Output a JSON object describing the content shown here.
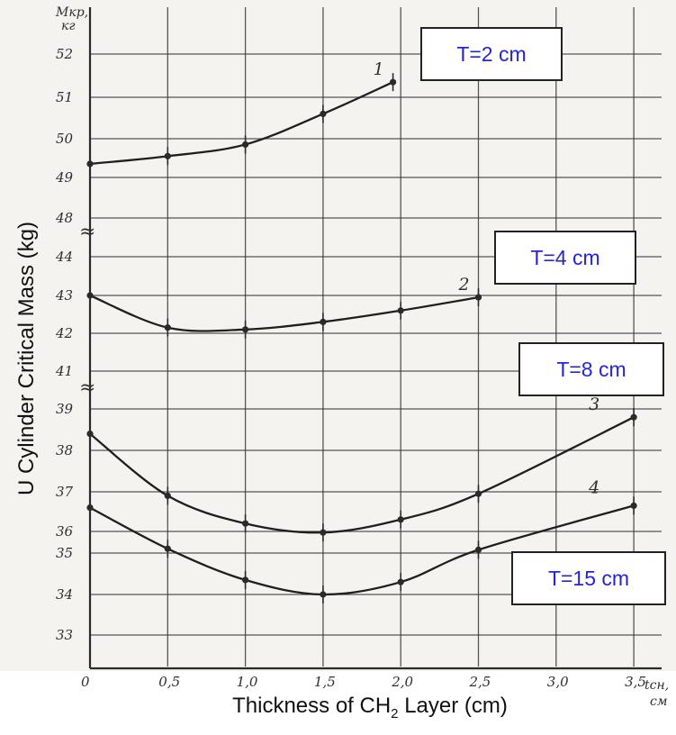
{
  "chart_data": {
    "type": "line",
    "xlabel_pre": "Thickness of CH",
    "xlabel_sub": "2",
    "xlabel_post": " Layer (cm)",
    "ylabel": "U Cylinder Critical Mass (kg)",
    "yaxis_top_label": "Mкр,",
    "yaxis_top_unit": "кг",
    "xaxis_end_label": "tсн,",
    "xaxis_end_unit": "см",
    "x_ticks": [
      "0",
      "0,5",
      "1,0",
      "1,5",
      "2,0",
      "2,5",
      "3,0",
      "3,5"
    ],
    "y_ticks": [
      "52",
      "51",
      "50",
      "49",
      "48",
      "44",
      "43",
      "42",
      "41",
      "39",
      "38",
      "37",
      "36",
      "35",
      "34",
      "33"
    ],
    "axis_break_symbols": [
      "≈",
      "≈"
    ],
    "xlim": [
      0,
      3.5
    ],
    "grid": true,
    "series": [
      {
        "curve_label": "1",
        "legend": "T=2 cm",
        "points": [
          [
            0,
            49.35
          ],
          [
            0.5,
            49.55
          ],
          [
            1.0,
            49.85
          ],
          [
            1.5,
            50.6
          ],
          [
            1.95,
            51.35
          ]
        ]
      },
      {
        "curve_label": "2",
        "legend": "T=4 cm",
        "points": [
          [
            0,
            43.0
          ],
          [
            0.5,
            42.15
          ],
          [
            1.0,
            42.1
          ],
          [
            1.5,
            42.3
          ],
          [
            2.0,
            42.6
          ],
          [
            2.5,
            42.95
          ]
        ]
      },
      {
        "curve_label": "3",
        "legend": "T=8 cm",
        "points": [
          [
            0,
            38.4
          ],
          [
            0.5,
            36.9
          ],
          [
            1.0,
            36.2
          ],
          [
            1.5,
            35.95
          ],
          [
            2.0,
            36.3
          ],
          [
            2.5,
            36.95
          ],
          [
            3.5,
            38.8
          ]
        ]
      },
      {
        "curve_label": "4",
        "legend": "T=15 cm",
        "points": [
          [
            0,
            36.6
          ],
          [
            0.5,
            35.2
          ],
          [
            1.0,
            34.35
          ],
          [
            1.5,
            34.0
          ],
          [
            2.0,
            34.3
          ],
          [
            2.5,
            35.15
          ],
          [
            3.5,
            36.65
          ]
        ]
      }
    ]
  }
}
